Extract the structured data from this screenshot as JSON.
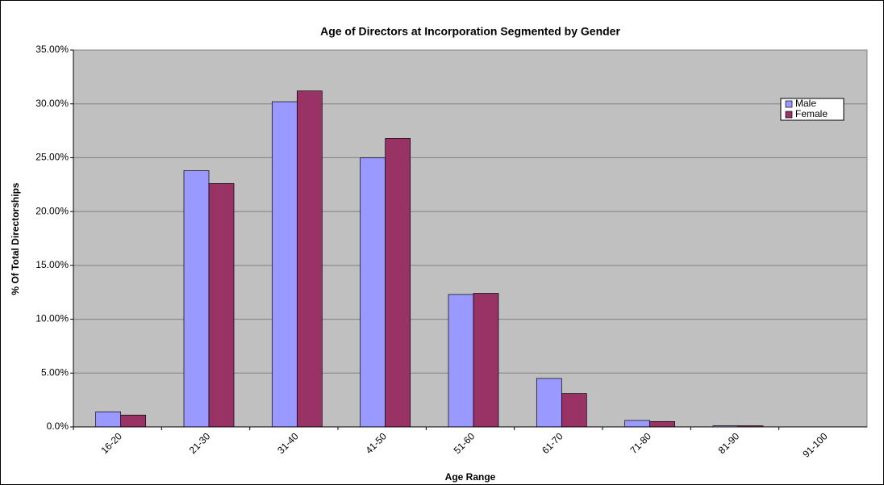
{
  "chart_data": {
    "type": "bar",
    "title": "Age of Directors at Incorporation Segmented by Gender",
    "x_label": "Age Range",
    "y_label": "% Of Total Directorships",
    "categories": [
      "16-20",
      "21-30",
      "31-40",
      "41-50",
      "51-60",
      "61-70",
      "71-80",
      "81-90",
      "91-100"
    ],
    "series": [
      {
        "name": "Male",
        "color": "#9999ff",
        "values": [
          1.4,
          23.8,
          30.2,
          25.0,
          12.3,
          4.5,
          0.6,
          0.1,
          0
        ]
      },
      {
        "name": "Female",
        "color": "#993366",
        "values": [
          1.1,
          22.6,
          31.2,
          26.8,
          12.4,
          3.1,
          0.5,
          0.1,
          0
        ]
      }
    ],
    "ylim": [
      0,
      35
    ],
    "yticks": [
      {
        "value": 0,
        "label": "0.0%"
      },
      {
        "value": 5,
        "label": "5.00%"
      },
      {
        "value": 10,
        "label": "10.00%"
      },
      {
        "value": 15,
        "label": "15.00%"
      },
      {
        "value": 20,
        "label": "20.00%"
      },
      {
        "value": 25,
        "label": "25.00%"
      },
      {
        "value": 30,
        "label": "30.00%"
      },
      {
        "value": 35,
        "label": "35.00%"
      }
    ],
    "grid": true,
    "legend": "upper-right",
    "plot_background": "#c0c0c0"
  }
}
